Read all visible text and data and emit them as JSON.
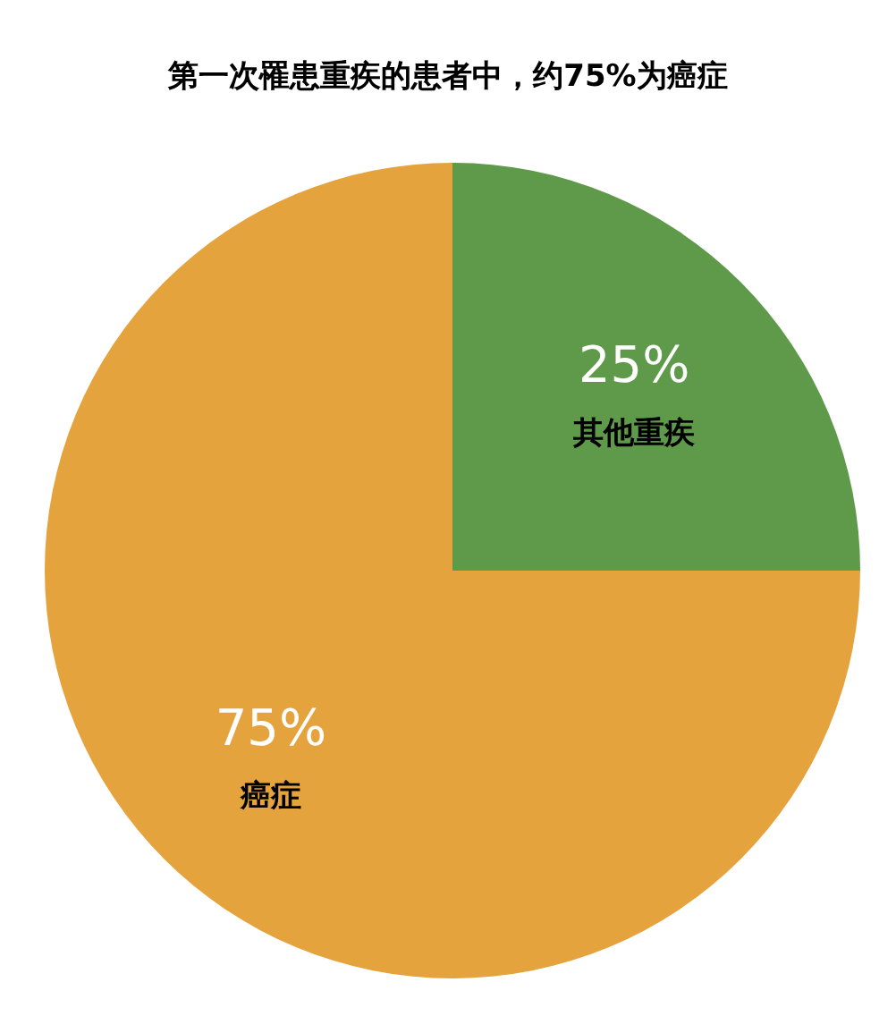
{
  "chart_data": {
    "type": "pie",
    "title": "第一次罹患重疾的患者中，约75%为癌症",
    "categories": [
      "其他重疾",
      "癌症"
    ],
    "values": [
      25,
      75
    ],
    "colors": [
      "#5e9a49",
      "#e5a33d"
    ],
    "value_labels": [
      "25%",
      "75%"
    ]
  }
}
